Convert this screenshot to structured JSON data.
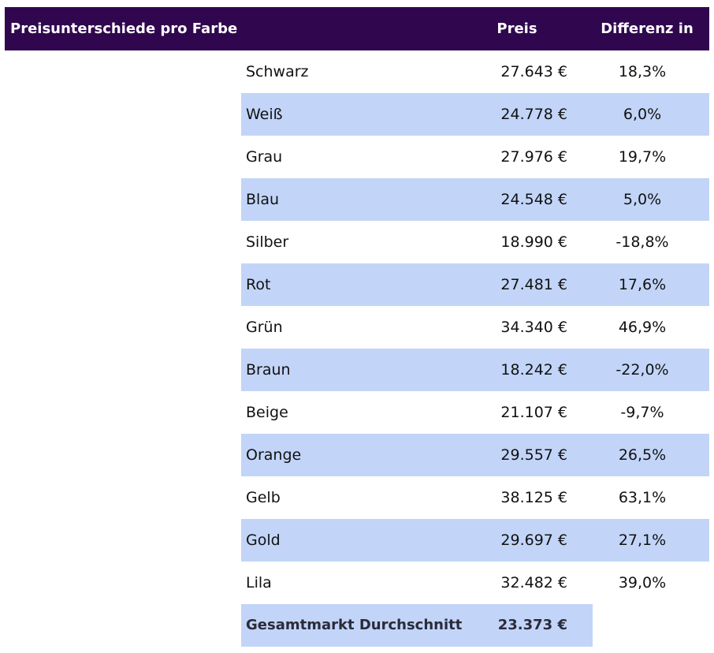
{
  "header": {
    "title": "Preisunterschiede pro Farbe",
    "price_label": "Preis",
    "diff_label": "Differenz in %"
  },
  "rows": [
    {
      "color": "Schwarz",
      "price": "27.643 €",
      "diff": "18,3%"
    },
    {
      "color": "Weiß",
      "price": "24.778 €",
      "diff": "6,0%"
    },
    {
      "color": "Grau",
      "price": "27.976 €",
      "diff": "19,7%"
    },
    {
      "color": "Blau",
      "price": "24.548 €",
      "diff": "5,0%"
    },
    {
      "color": "Silber",
      "price": "18.990 €",
      "diff": "-18,8%"
    },
    {
      "color": "Rot",
      "price": "27.481 €",
      "diff": "17,6%"
    },
    {
      "color": "Grün",
      "price": "34.340 €",
      "diff": "46,9%"
    },
    {
      "color": "Braun",
      "price": "18.242 €",
      "diff": "-22,0%"
    },
    {
      "color": "Beige",
      "price": "21.107 €",
      "diff": "-9,7%"
    },
    {
      "color": "Orange",
      "price": "29.557 €",
      "diff": "26,5%"
    },
    {
      "color": "Gelb",
      "price": "38.125 €",
      "diff": "63,1%"
    },
    {
      "color": "Gold",
      "price": "29.697 €",
      "diff": "27,1%"
    },
    {
      "color": "Lila",
      "price": "32.482 €",
      "diff": "39,0%"
    }
  ],
  "total": {
    "label": "Gesamtmarkt Durchschnitt",
    "price": "23.373 €"
  },
  "colors": {
    "header_bg": "#30074f",
    "row_shade": "#c2d5f8"
  }
}
